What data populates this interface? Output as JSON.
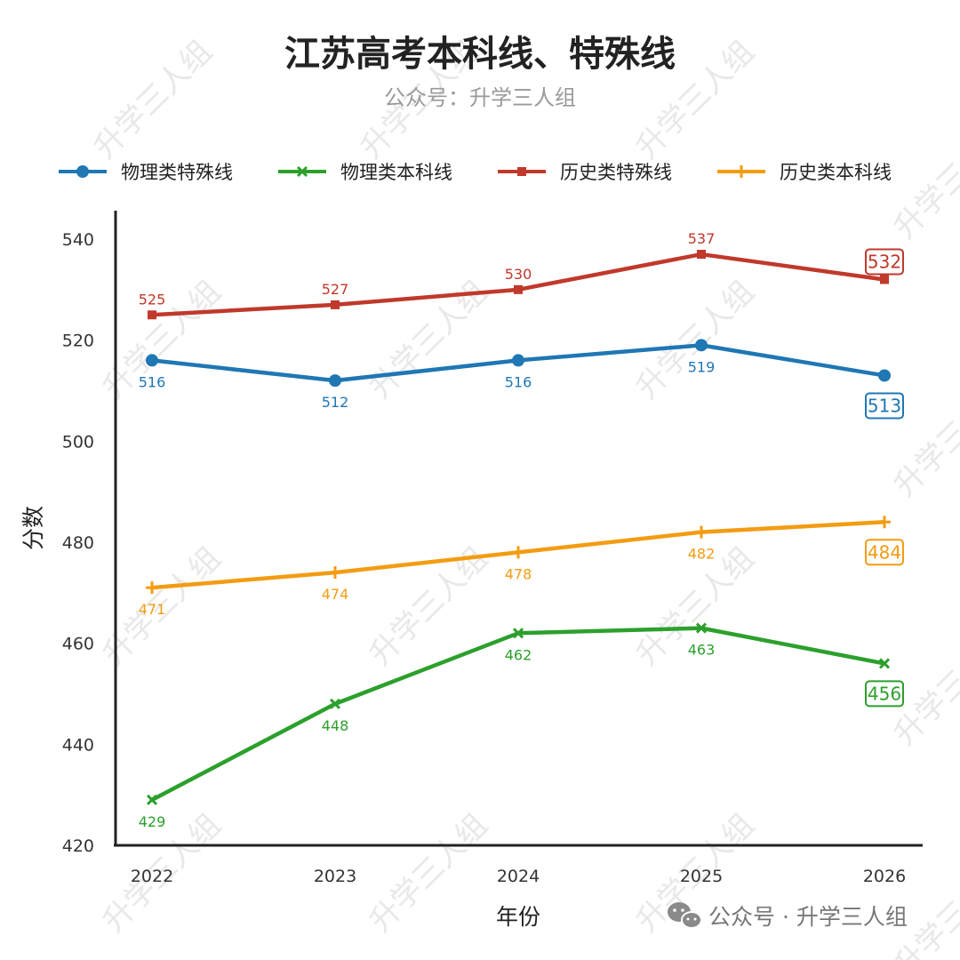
{
  "chart_data": {
    "type": "line",
    "title": "江苏高考本科线、特殊线",
    "subtitle": "公众号：升学三人组",
    "xlabel": "年份",
    "ylabel": "分数",
    "categories": [
      "2022",
      "2023",
      "2024",
      "2025",
      "2026"
    ],
    "ylim": [
      420,
      540
    ],
    "yticks": [
      "420",
      "440",
      "460",
      "480",
      "500",
      "520",
      "540"
    ],
    "grid": false,
    "legend_position": "top",
    "series": [
      {
        "name": "物理类特殊线",
        "color": "#1f77b4",
        "marker": "circle",
        "values": [
          516,
          512,
          516,
          519,
          513
        ],
        "label_position": "below"
      },
      {
        "name": "物理类本科线",
        "color": "#2ca02c",
        "marker": "x",
        "values": [
          429,
          448,
          462,
          463,
          456
        ],
        "label_position": "below"
      },
      {
        "name": "历史类特殊线",
        "color": "#c0392b",
        "marker": "square",
        "values": [
          525,
          527,
          530,
          537,
          532
        ],
        "label_position": "above"
      },
      {
        "name": "历史类本科线",
        "color": "#f39c12",
        "marker": "plus",
        "values": [
          471,
          474,
          478,
          482,
          484
        ],
        "label_position": "below"
      }
    ]
  },
  "watermark": "升学三人组",
  "footer": {
    "icon": "wechat-icon",
    "text": "公众号 · 升学三人组"
  }
}
